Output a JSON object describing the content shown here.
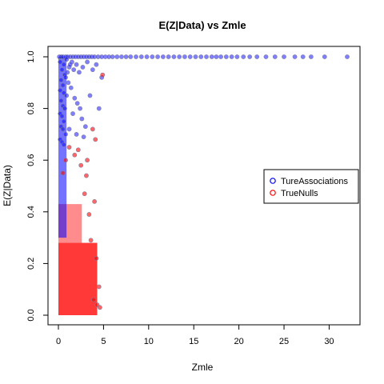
{
  "chart_data": {
    "type": "scatter",
    "title": "E(Z|Data) vs Zmle",
    "xlabel": "Zmle",
    "ylabel": "E(Z|Data)",
    "xlim": [
      0,
      32
    ],
    "ylim": [
      0,
      1
    ],
    "xticks": [
      0,
      5,
      10,
      15,
      20,
      25,
      30
    ],
    "yticks": [
      0.0,
      0.2,
      0.4,
      0.6,
      0.8,
      1.0
    ],
    "ytick_labels": [
      "0.0",
      "0.2",
      "0.4",
      "0.6",
      "0.8",
      "1.0"
    ],
    "grid": false,
    "legend": {
      "placement": "right",
      "entries": [
        "TureAssociations",
        "TrueNulls"
      ]
    },
    "colors": {
      "true_associations": "#0000ff",
      "true_nulls": "#ff0000",
      "point_edge": "#8080a0"
    },
    "series": [
      {
        "name": "TureAssociations",
        "points": [
          [
            0.1,
            1.0
          ],
          [
            0.3,
            1.0
          ],
          [
            0.5,
            1.0
          ],
          [
            0.8,
            1.0
          ],
          [
            1.0,
            1.0
          ],
          [
            1.3,
            1.0
          ],
          [
            1.6,
            1.0
          ],
          [
            1.9,
            1.0
          ],
          [
            2.2,
            1.0
          ],
          [
            2.5,
            1.0
          ],
          [
            2.8,
            1.0
          ],
          [
            3.1,
            1.0
          ],
          [
            3.4,
            1.0
          ],
          [
            3.7,
            1.0
          ],
          [
            4.0,
            1.0
          ],
          [
            4.4,
            1.0
          ],
          [
            4.8,
            1.0
          ],
          [
            5.2,
            1.0
          ],
          [
            5.6,
            1.0
          ],
          [
            6.0,
            1.0
          ],
          [
            6.5,
            1.0
          ],
          [
            7.0,
            1.0
          ],
          [
            7.5,
            1.0
          ],
          [
            8.0,
            1.0
          ],
          [
            8.6,
            1.0
          ],
          [
            9.2,
            1.0
          ],
          [
            9.8,
            1.0
          ],
          [
            10.4,
            1.0
          ],
          [
            11.0,
            1.0
          ],
          [
            11.6,
            1.0
          ],
          [
            12.2,
            1.0
          ],
          [
            12.8,
            1.0
          ],
          [
            13.4,
            1.0
          ],
          [
            14.0,
            1.0
          ],
          [
            14.6,
            1.0
          ],
          [
            15.2,
            1.0
          ],
          [
            15.8,
            1.0
          ],
          [
            16.4,
            1.0
          ],
          [
            17.0,
            1.0
          ],
          [
            17.5,
            1.0
          ],
          [
            18.0,
            1.0
          ],
          [
            18.6,
            1.0
          ],
          [
            19.2,
            1.0
          ],
          [
            19.8,
            1.0
          ],
          [
            20.5,
            1.0
          ],
          [
            21.2,
            1.0
          ],
          [
            22.0,
            1.0
          ],
          [
            23.0,
            1.0
          ],
          [
            24.0,
            1.0
          ],
          [
            25.0,
            1.0
          ],
          [
            26.2,
            1.0
          ],
          [
            27.1,
            1.0
          ],
          [
            28.0,
            1.0
          ],
          [
            29.5,
            1.0
          ],
          [
            32.0,
            1.0
          ],
          [
            0.2,
            0.98
          ],
          [
            0.6,
            0.97
          ],
          [
            0.9,
            0.99
          ],
          [
            1.2,
            0.96
          ],
          [
            1.5,
            0.98
          ],
          [
            0.4,
            0.95
          ],
          [
            0.7,
            0.93
          ],
          [
            1.0,
            0.94
          ],
          [
            0.3,
            0.91
          ],
          [
            0.5,
            0.89
          ],
          [
            0.8,
            0.92
          ],
          [
            1.1,
            0.9
          ],
          [
            0.2,
            0.87
          ],
          [
            0.6,
            0.86
          ],
          [
            0.9,
            0.85
          ],
          [
            0.3,
            0.83
          ],
          [
            0.5,
            0.81
          ],
          [
            0.7,
            0.8
          ],
          [
            0.2,
            0.78
          ],
          [
            0.4,
            0.77
          ],
          [
            0.6,
            0.75
          ],
          [
            0.3,
            0.73
          ],
          [
            0.5,
            0.72
          ],
          [
            0.8,
            0.7
          ],
          [
            0.2,
            0.68
          ],
          [
            0.4,
            0.67
          ],
          [
            0.6,
            0.66
          ],
          [
            1.4,
            0.88
          ],
          [
            1.8,
            0.84
          ],
          [
            2.1,
            0.82
          ],
          [
            1.6,
            0.78
          ],
          [
            2.4,
            0.8
          ],
          [
            3.5,
            0.85
          ],
          [
            4.8,
            0.92
          ],
          [
            4.5,
            0.8
          ],
          [
            3.0,
            0.73
          ],
          [
            2.6,
            0.76
          ],
          [
            1.2,
            0.72
          ],
          [
            2.0,
            0.7
          ],
          [
            2.8,
            0.69
          ],
          [
            1.3,
            0.97
          ],
          [
            1.7,
            0.95
          ],
          [
            2.0,
            0.97
          ],
          [
            2.3,
            0.94
          ],
          [
            2.7,
            0.96
          ],
          [
            3.2,
            0.98
          ],
          [
            3.8,
            0.95
          ],
          [
            4.2,
            0.97
          ]
        ]
      },
      {
        "name": "TrueNulls",
        "points": [
          [
            3.8,
            0.72
          ],
          [
            4.1,
            0.68
          ],
          [
            4.9,
            0.93
          ],
          [
            3.2,
            0.6
          ],
          [
            4.0,
            0.44
          ],
          [
            3.6,
            0.29
          ],
          [
            4.2,
            0.22
          ],
          [
            4.5,
            0.11
          ],
          [
            3.9,
            0.06
          ],
          [
            4.3,
            0.04
          ],
          [
            4.6,
            0.03
          ],
          [
            3.4,
            0.39
          ],
          [
            2.9,
            0.47
          ],
          [
            3.1,
            0.54
          ],
          [
            2.5,
            0.58
          ],
          [
            1.8,
            0.62
          ],
          [
            2.2,
            0.64
          ],
          [
            1.2,
            0.65
          ],
          [
            0.8,
            0.6
          ],
          [
            0.5,
            0.55
          ]
        ]
      }
    ]
  }
}
